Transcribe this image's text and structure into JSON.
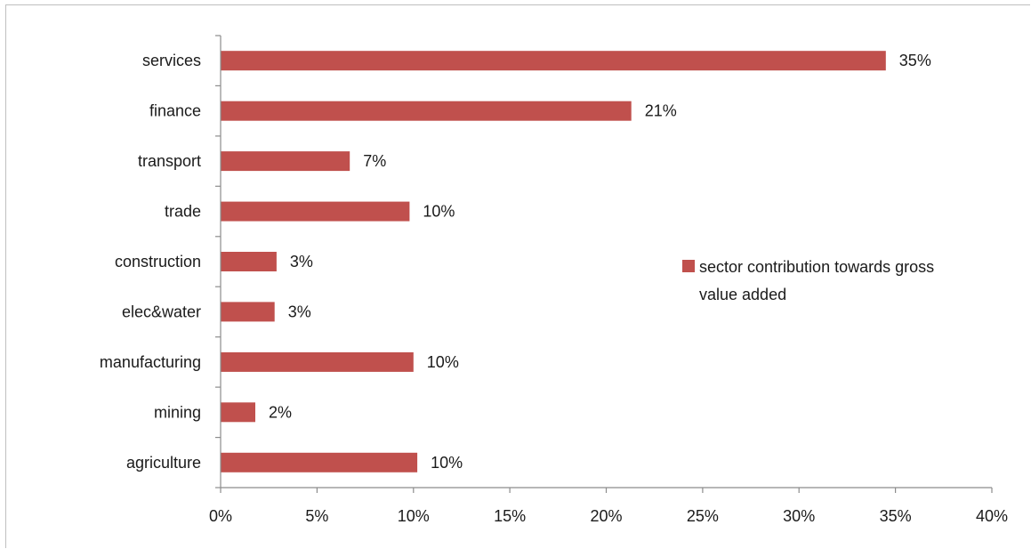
{
  "chart_data": {
    "type": "bar",
    "orientation": "horizontal",
    "categories": [
      "services",
      "finance",
      "transport",
      "trade",
      "construction",
      "elec&water",
      "manufacturing",
      "mining",
      "agriculture"
    ],
    "series": [
      {
        "name": "sector contribution towards gross value added",
        "legend_lines": [
          "sector contribution towards gross",
          "value added"
        ],
        "values": [
          0.345,
          0.213,
          0.067,
          0.098,
          0.029,
          0.028,
          0.1,
          0.018,
          0.102
        ],
        "data_labels": [
          "35%",
          "21%",
          "7%",
          "10%",
          "3%",
          "3%",
          "10%",
          "2%",
          "10%"
        ],
        "color": "#c0504d"
      }
    ],
    "x_ticks": [
      0,
      0.05,
      0.1,
      0.15,
      0.2,
      0.25,
      0.3,
      0.35,
      0.4
    ],
    "x_tick_labels": [
      "0%",
      "5%",
      "10%",
      "15%",
      "20%",
      "25%",
      "30%",
      "35%",
      "40%"
    ],
    "xlim": [
      0,
      0.4
    ],
    "title": "",
    "xlabel": "",
    "ylabel": "",
    "grid": false,
    "legend_position": "right"
  },
  "colors": {
    "bar": "#c0504d",
    "axis": "#8c8c8c",
    "text": "#1a1a1a",
    "frame": "#bfbfbf"
  }
}
